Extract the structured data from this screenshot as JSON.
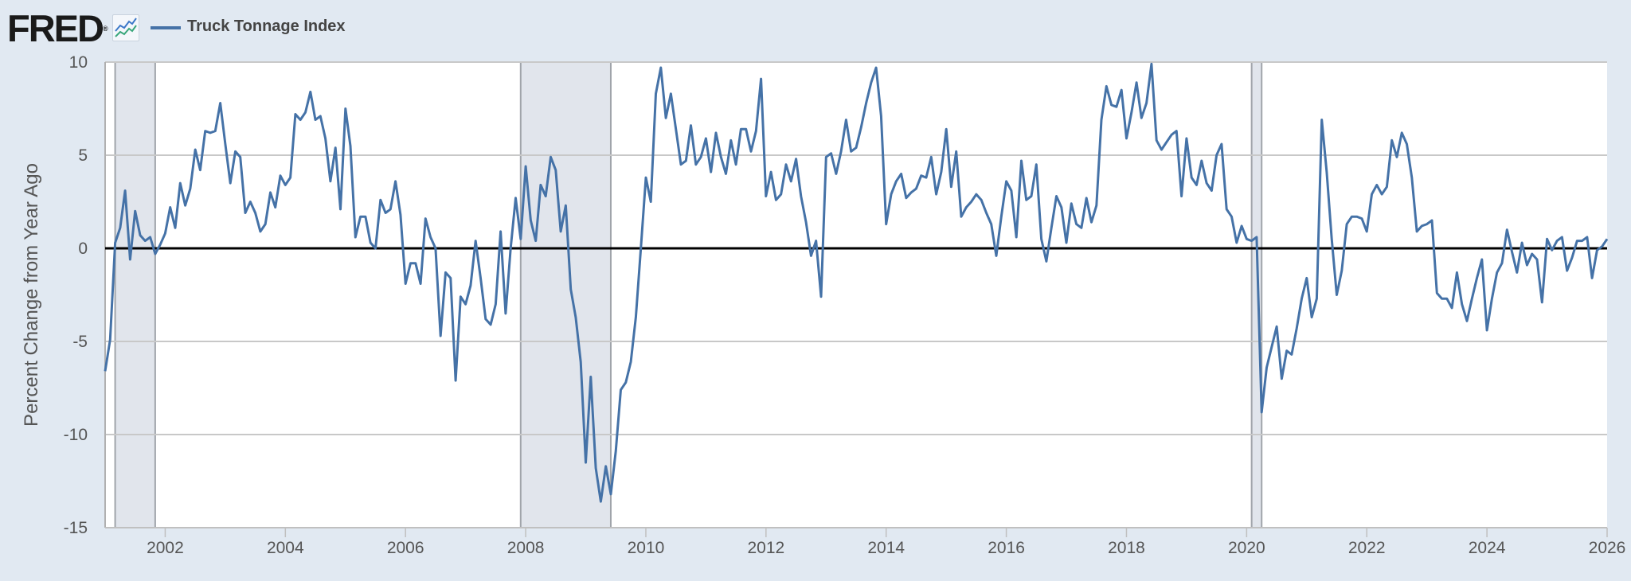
{
  "header": {
    "logo": "FRED",
    "logo_mark": "®",
    "legend_label": "Truck Tonnage Index"
  },
  "colors": {
    "series": "#4572a7",
    "background": "#e1e9f2",
    "plot_background": "#ffffff",
    "recession": "#e1e5ec",
    "grid": "#c8c8c8",
    "zero_line": "#000000"
  },
  "chart_data": {
    "type": "line",
    "title": "",
    "legend": [
      "Truck Tonnage Index"
    ],
    "legend_placement": "top-left",
    "ylabel": "Percent Change from Year Ago",
    "xlabel": "",
    "ylim": [
      -15,
      10
    ],
    "xlim": [
      "2001-01",
      "2026-01"
    ],
    "grid": true,
    "yticks": [
      10,
      5,
      0,
      -5,
      -10,
      -15
    ],
    "ytick_labels": [
      "10",
      "5",
      "0",
      "-5",
      "-10",
      "-15"
    ],
    "xticks": [
      2002,
      2004,
      2006,
      2008,
      2010,
      2012,
      2014,
      2016,
      2018,
      2020,
      2022,
      2024,
      2026
    ],
    "xtick_labels": [
      "2002",
      "2004",
      "2006",
      "2008",
      "2010",
      "2012",
      "2014",
      "2016",
      "2018",
      "2020",
      "2022",
      "2024",
      "2026"
    ],
    "reference_line": 0,
    "recessions": [
      [
        "2001-03",
        "2001-11"
      ],
      [
        "2007-12",
        "2009-06"
      ],
      [
        "2020-02",
        "2020-04"
      ]
    ],
    "series": [
      {
        "name": "Truck Tonnage Index",
        "start": "2001-01",
        "frequency": "monthly",
        "values": [
          -6.6,
          -4.9,
          0.3,
          1.1,
          3.1,
          -0.6,
          2.0,
          0.7,
          0.4,
          0.6,
          -0.3,
          0.2,
          0.8,
          2.2,
          1.1,
          3.5,
          2.3,
          3.2,
          5.3,
          4.2,
          6.3,
          6.2,
          6.3,
          7.8,
          5.6,
          3.5,
          5.2,
          4.9,
          1.9,
          2.5,
          1.9,
          0.9,
          1.3,
          3.0,
          2.2,
          3.9,
          3.4,
          3.8,
          7.2,
          6.9,
          7.3,
          8.4,
          6.9,
          7.1,
          5.9,
          3.6,
          5.4,
          2.1,
          7.5,
          5.5,
          0.6,
          1.7,
          1.7,
          0.3,
          0.0,
          2.6,
          1.9,
          2.1,
          3.6,
          1.8,
          -1.9,
          -0.8,
          -0.8,
          -1.9,
          1.6,
          0.6,
          0.0,
          -4.7,
          -1.3,
          -1.6,
          -7.1,
          -2.6,
          -3.0,
          -2.0,
          0.4,
          -1.6,
          -3.8,
          -4.1,
          -3.0,
          0.9,
          -3.5,
          0.0,
          2.7,
          0.5,
          4.4,
          1.5,
          0.4,
          3.4,
          2.8,
          4.9,
          4.2,
          0.9,
          2.3,
          -2.2,
          -3.7,
          -6.1,
          -11.5,
          -6.9,
          -11.8,
          -13.6,
          -11.7,
          -13.2,
          -10.9,
          -7.6,
          -7.2,
          -6.1,
          -3.7,
          0.0,
          3.8,
          2.5,
          8.3,
          9.7,
          7.0,
          8.3,
          6.4,
          4.5,
          4.7,
          6.6,
          4.5,
          4.9,
          5.9,
          4.1,
          6.2,
          4.9,
          4.0,
          5.8,
          4.5,
          6.4,
          6.4,
          5.2,
          6.3,
          9.1,
          2.8,
          4.1,
          2.6,
          2.9,
          4.5,
          3.6,
          4.8,
          2.8,
          1.4,
          -0.4,
          0.4,
          -2.6,
          4.9,
          5.1,
          4.0,
          5.2,
          6.9,
          5.2,
          5.4,
          6.5,
          7.8,
          8.9,
          9.7,
          7.1,
          1.3,
          2.9,
          3.6,
          4.0,
          2.7,
          3.0,
          3.2,
          3.9,
          3.8,
          4.9,
          2.9,
          4.1,
          6.4,
          3.3,
          5.2,
          1.7,
          2.2,
          2.5,
          2.9,
          2.6,
          1.9,
          1.3,
          -0.4,
          1.7,
          3.6,
          3.1,
          0.6,
          4.7,
          2.6,
          2.8,
          4.5,
          0.5,
          -0.7,
          1.1,
          2.8,
          2.2,
          0.3,
          2.4,
          1.3,
          1.1,
          2.7,
          1.4,
          2.3,
          6.9,
          8.7,
          7.7,
          7.6,
          8.5,
          5.9,
          7.3,
          8.9,
          7.0,
          7.8,
          9.9,
          5.8,
          5.3,
          5.7,
          6.1,
          6.3,
          2.8,
          5.9,
          3.8,
          3.4,
          4.7,
          3.5,
          3.1,
          5.0,
          5.6,
          2.1,
          1.7,
          0.3,
          1.2,
          0.5,
          0.4,
          0.6,
          -8.8,
          -6.4,
          -5.3,
          -4.2,
          -7.0,
          -5.5,
          -5.7,
          -4.3,
          -2.7,
          -1.6,
          -3.7,
          -2.7,
          6.9,
          4.1,
          0.5,
          -2.5,
          -1.2,
          1.3,
          1.7,
          1.7,
          1.6,
          0.9,
          2.9,
          3.4,
          2.9,
          3.3,
          5.8,
          4.9,
          6.2,
          5.6,
          3.8,
          0.9,
          1.2,
          1.3,
          1.5,
          -2.4,
          -2.7,
          -2.7,
          -3.2,
          -1.3,
          -3.0,
          -3.9,
          -2.7,
          -1.6,
          -0.6,
          -4.4,
          -2.7,
          -1.3,
          -0.8,
          1.0,
          -0.2,
          -1.3,
          0.3,
          -0.9,
          -0.3,
          -0.6,
          -2.9,
          0.5,
          -0.1,
          0.4,
          0.6,
          -1.2,
          -0.5,
          0.4,
          0.4,
          0.6,
          -1.6,
          -0.1,
          0.1,
          0.5
        ]
      }
    ]
  }
}
